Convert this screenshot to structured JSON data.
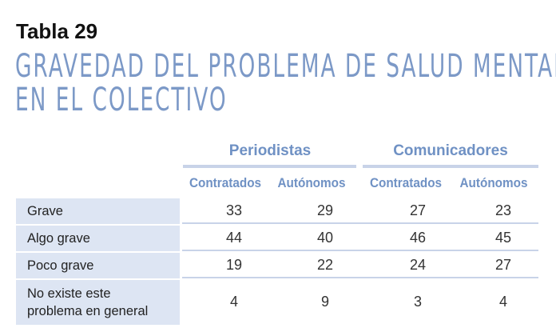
{
  "table_label": "Tabla 29",
  "title_lines": [
    "GRAVEDAD DEL PROBLEMA DE SALUD MENTAL",
    "EN EL COLECTIVO"
  ],
  "groups": [
    {
      "label": "Periodistas",
      "columns": [
        "Contratados",
        "Autónomos"
      ]
    },
    {
      "label": "Comunicadores",
      "columns": [
        "Contratados",
        "Autónomos"
      ]
    }
  ],
  "rows": [
    {
      "label_lines": [
        "Grave"
      ],
      "values": [
        "33",
        "29",
        "27",
        "23"
      ]
    },
    {
      "label_lines": [
        "Algo grave"
      ],
      "values": [
        "44",
        "40",
        "46",
        "45"
      ]
    },
    {
      "label_lines": [
        "Poco grave"
      ],
      "values": [
        "19",
        "22",
        "24",
        "27"
      ]
    },
    {
      "label_lines": [
        "No existe este",
        "problema en general"
      ],
      "values": [
        "4",
        "9",
        "3",
        "4"
      ]
    }
  ],
  "colors": {
    "title": "#7c99c7",
    "header": "#6f91c4",
    "label_bg": "#dde5f3",
    "rule": "#c8d3e8"
  }
}
